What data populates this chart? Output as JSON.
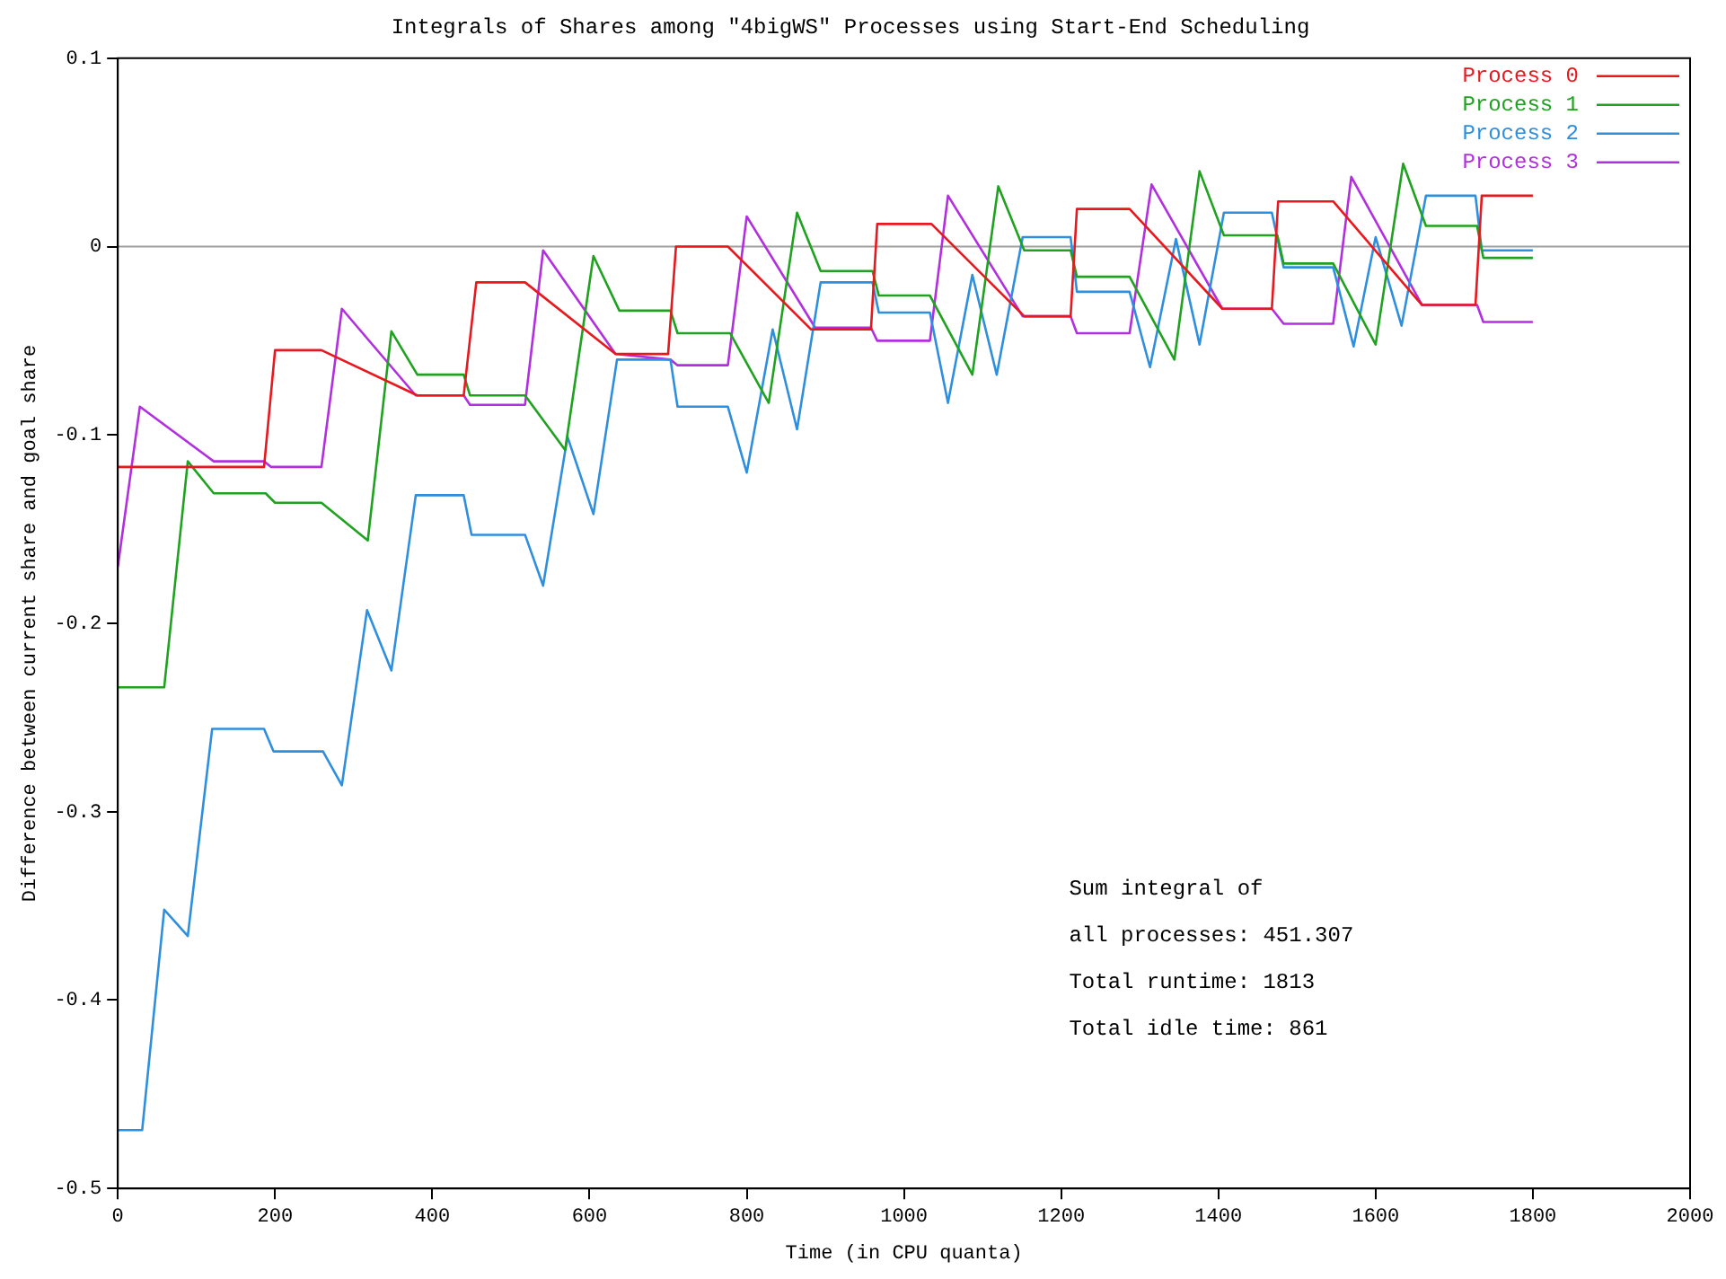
{
  "chart_data": {
    "type": "line",
    "title": "Integrals of Shares among \"4bigWS\" Processes using Start-End Scheduling",
    "xlabel": "Time (in CPU quanta)",
    "ylabel": "Difference between current share and goal share",
    "xlim": [
      0,
      2000
    ],
    "xticks": [
      0,
      200,
      400,
      600,
      800,
      1000,
      1200,
      1400,
      1600,
      1800,
      2000
    ],
    "ylim": [
      -0.5,
      0.1
    ],
    "yticks": [
      -0.5,
      -0.4,
      -0.3,
      -0.2,
      -0.1,
      0,
      0.1
    ],
    "grid": false,
    "legend": "top right",
    "marker": "none",
    "line_style": "solid",
    "ref_lines": [
      {
        "axis": "y",
        "value": 0,
        "color": "#a0a0a0"
      }
    ],
    "annotations": [
      "Sum integral of",
      "all processes: 451.307",
      "Total runtime: 1813",
      "Total idle time: 861"
    ],
    "series": [
      {
        "name": "Process 0",
        "color": "#e8191e",
        "x": [
          0,
          186,
          200,
          259,
          381,
          440,
          456,
          518,
          633,
          700,
          710,
          776,
          882,
          958,
          966,
          1035,
          1153,
          1212,
          1220,
          1287,
          1405,
          1468,
          1476,
          1546,
          1659,
          1727,
          1735,
          1800
        ],
        "values": [
          -0.117,
          -0.117,
          -0.055,
          -0.055,
          -0.079,
          -0.079,
          -0.019,
          -0.019,
          -0.057,
          -0.057,
          0.0,
          0.0,
          -0.044,
          -0.044,
          0.012,
          0.012,
          -0.037,
          -0.037,
          0.02,
          0.02,
          -0.033,
          -0.033,
          0.024,
          0.024,
          -0.031,
          -0.031,
          0.027,
          0.027
        ]
      },
      {
        "name": "Process 1",
        "color": "#1fa21f",
        "x": [
          0,
          59,
          89,
          122,
          188,
          200,
          259,
          318,
          348,
          381,
          440,
          448,
          518,
          569,
          605,
          638,
          703,
          712,
          779,
          828,
          864,
          894,
          960,
          968,
          1033,
          1087,
          1120,
          1153,
          1212,
          1220,
          1287,
          1344,
          1376,
          1407,
          1475,
          1483,
          1546,
          1600,
          1635,
          1664,
          1729,
          1737,
          1800
        ],
        "values": [
          -0.234,
          -0.234,
          -0.114,
          -0.131,
          -0.131,
          -0.136,
          -0.136,
          -0.156,
          -0.045,
          -0.068,
          -0.068,
          -0.079,
          -0.079,
          -0.108,
          -0.005,
          -0.034,
          -0.034,
          -0.046,
          -0.046,
          -0.083,
          0.018,
          -0.013,
          -0.013,
          -0.026,
          -0.026,
          -0.068,
          0.032,
          -0.002,
          -0.002,
          -0.016,
          -0.016,
          -0.06,
          0.04,
          0.006,
          0.006,
          -0.009,
          -0.009,
          -0.052,
          0.044,
          0.011,
          0.011,
          -0.006,
          -0.006
        ]
      },
      {
        "name": "Process 2",
        "color": "#2f8fdf",
        "x": [
          0,
          31,
          59,
          89,
          120,
          186,
          198,
          261,
          285,
          317,
          348,
          379,
          440,
          450,
          518,
          541,
          572,
          605,
          635,
          703,
          712,
          776,
          800,
          833,
          864,
          894,
          960,
          968,
          1033,
          1056,
          1087,
          1118,
          1151,
          1212,
          1220,
          1287,
          1313,
          1346,
          1376,
          1407,
          1468,
          1483,
          1546,
          1572,
          1600,
          1633,
          1664,
          1727,
          1735,
          1800
        ],
        "values": [
          -0.469,
          -0.469,
          -0.352,
          -0.366,
          -0.256,
          -0.256,
          -0.268,
          -0.268,
          -0.286,
          -0.193,
          -0.225,
          -0.132,
          -0.132,
          -0.153,
          -0.153,
          -0.18,
          -0.101,
          -0.142,
          -0.06,
          -0.06,
          -0.085,
          -0.085,
          -0.12,
          -0.044,
          -0.097,
          -0.019,
          -0.019,
          -0.035,
          -0.035,
          -0.083,
          -0.015,
          -0.068,
          0.005,
          0.005,
          -0.024,
          -0.024,
          -0.064,
          0.004,
          -0.052,
          0.018,
          0.018,
          -0.011,
          -0.011,
          -0.053,
          0.005,
          -0.042,
          0.027,
          0.027,
          -0.002,
          -0.002
        ]
      },
      {
        "name": "Process 3",
        "color": "#b22fdf",
        "x": [
          0,
          28,
          122,
          186,
          195,
          259,
          285,
          379,
          440,
          448,
          518,
          541,
          633,
          703,
          712,
          776,
          800,
          887,
          958,
          966,
          1033,
          1056,
          1151,
          1212,
          1220,
          1287,
          1315,
          1405,
          1468,
          1483,
          1546,
          1569,
          1659,
          1729,
          1737,
          1800
        ],
        "values": [
          -0.17,
          -0.085,
          -0.114,
          -0.114,
          -0.117,
          -0.117,
          -0.033,
          -0.079,
          -0.079,
          -0.084,
          -0.084,
          -0.002,
          -0.057,
          -0.06,
          -0.063,
          -0.063,
          0.016,
          -0.043,
          -0.043,
          -0.05,
          -0.05,
          0.027,
          -0.037,
          -0.037,
          -0.046,
          -0.046,
          0.033,
          -0.033,
          -0.033,
          -0.041,
          -0.041,
          0.037,
          -0.031,
          -0.031,
          -0.04,
          -0.04
        ]
      }
    ]
  }
}
